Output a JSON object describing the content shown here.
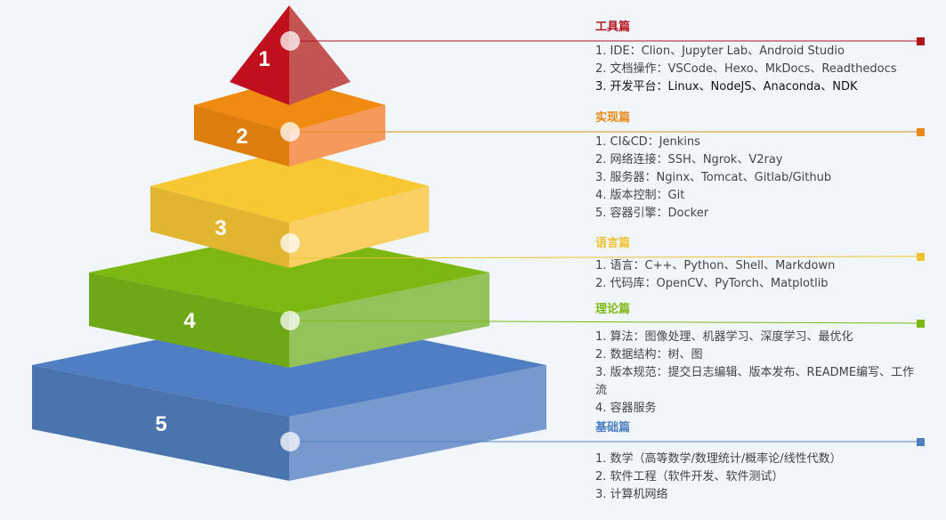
{
  "levels": [
    {
      "number": "1",
      "color": "#c0101e"
    },
    {
      "number": "2",
      "color": "#f08a10"
    },
    {
      "number": "3",
      "color": "#f7c832"
    },
    {
      "number": "4",
      "color": "#7db812"
    },
    {
      "number": "5",
      "color": "#4f7fc2"
    }
  ],
  "sections": [
    {
      "title": "工具篇",
      "color": "#b3141c",
      "items": [
        "1. IDE：Clion、Jupyter Lab、Android Studio",
        "2. 文档操作：VSCode、Hexo、MkDocs、Readthedocs",
        "3. 开发平台：Linux、NodeJS、Anaconda、NDK"
      ]
    },
    {
      "title": "实现篇",
      "color": "#e98a1c",
      "items": [
        "1. CI&CD：Jenkins",
        "2. 网络连接：SSH、Ngrok、V2ray",
        "3. 服务器：Nginx、Tomcat、Gitlab/Github",
        "4. 版本控制：Git",
        "5. 容器引擎：Docker"
      ]
    },
    {
      "title": "语言篇",
      "color": "#f0c232",
      "items": [
        "1. 语言：C++、Python、Shell、Markdown",
        "2. 代码库：OpenCV、PyTorch、Matplotlib"
      ]
    },
    {
      "title": "理论篇",
      "color": "#7db812",
      "items": [
        "1. 算法：图像处理、机器学习、深度学习、最优化",
        "2. 数据结构：树、图",
        "3. 版本规范：提交日志编辑、版本发布、README编写、工作流",
        "4. 容器服务"
      ]
    },
    {
      "title": "基础篇",
      "color": "#4f7fc2",
      "items": [
        "1. 数学（高等数学/数理统计/概率论/线性代数）",
        "2. 软件工程（软件开发、软件测试）",
        "3. 计算机网络"
      ]
    }
  ]
}
